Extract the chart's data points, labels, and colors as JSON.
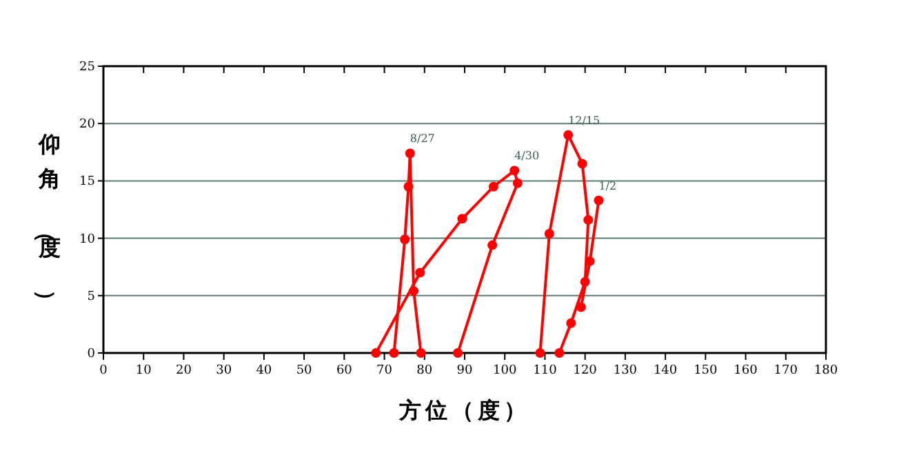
{
  "chart_data": {
    "type": "line",
    "xlabel": "方位（度）",
    "ylabel": "仰角（度）",
    "xlim": [
      0,
      180
    ],
    "xticks": [
      0,
      10,
      20,
      30,
      40,
      50,
      60,
      70,
      80,
      90,
      100,
      110,
      120,
      130,
      140,
      150,
      160,
      170,
      180
    ],
    "ylim": [
      0,
      25
    ],
    "yticks": [
      0,
      5,
      10,
      15,
      20,
      25
    ],
    "grid": "y",
    "marker": "circle",
    "line_style": "solid",
    "series": [
      {
        "color": "#ff0000",
        "x": [
          72.4,
          75.1,
          76.0,
          76.4,
          77.3,
          79.1
        ],
        "values": [
          0,
          9.9,
          14.5,
          17.4,
          5.4,
          0
        ]
      },
      {
        "color": "#ff0000",
        "x": [
          67.9,
          78.9,
          89.4,
          97.2,
          102.4,
          103.2,
          96.9,
          88.3
        ],
        "values": [
          0,
          7.0,
          11.7,
          14.5,
          15.9,
          14.8,
          9.4,
          0
        ]
      },
      {
        "color": "#ff0000",
        "x": [
          108.8,
          111.1,
          115.8,
          119.3,
          120.8,
          120.0,
          116.5,
          113.6
        ],
        "values": [
          0,
          10.4,
          19.0,
          16.5,
          11.6,
          6.2,
          2.6,
          0
        ]
      },
      {
        "color": "#ff0000",
        "x": [
          119.0,
          121.2,
          123.4
        ],
        "values": [
          4.0,
          8.0,
          13.3
        ]
      }
    ],
    "annotations": [
      {
        "text": "8/27",
        "x": 76.4,
        "y": 17.4
      },
      {
        "text": "4/30",
        "x": 102.4,
        "y": 15.9
      },
      {
        "text": "12/15",
        "x": 115.8,
        "y": 19.0
      },
      {
        "text": "1/2",
        "x": 123.4,
        "y": 13.3
      }
    ]
  }
}
